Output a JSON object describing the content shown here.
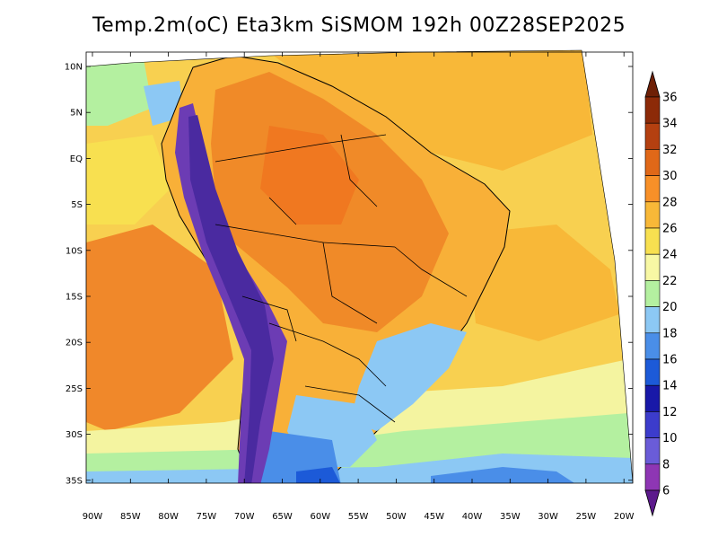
{
  "title": "Temp.2m(oC) Eta3km SiSMOM 192h 00Z28SEP2025",
  "lat_labels": [
    "10N",
    "5N",
    "EQ",
    "5S",
    "10S",
    "15S",
    "20S",
    "25S",
    "30S",
    "35S"
  ],
  "lon_labels": [
    "90W",
    "85W",
    "80W",
    "75W",
    "70W",
    "65W",
    "60W",
    "55W",
    "50W",
    "45W",
    "40W",
    "35W",
    "30W",
    "25W",
    "20W"
  ],
  "colorbar": {
    "labels": [
      "6",
      "8",
      "10",
      "12",
      "14",
      "16",
      "18",
      "20",
      "22",
      "24",
      "26",
      "28",
      "30",
      "32",
      "34",
      "36"
    ],
    "colors": [
      "#5c1a8c",
      "#8e36b4",
      "#6a5cd8",
      "#3c3ccc",
      "#1818a8",
      "#1c5ad8",
      "#4a8ee8",
      "#8cc8f4",
      "#b4f0a0",
      "#f8f8a4",
      "#f8e050",
      "#f8b838",
      "#f89028",
      "#e06818",
      "#b44010",
      "#8c2a08",
      "#6e2006"
    ]
  },
  "map_colors": {
    "ocean_warm": "#f8a838",
    "ocean_mid": "#f8d050",
    "ocean_cool": "#f4f4a0",
    "ocean_cold": "#b4f0a0",
    "land_hot": "#f08a28",
    "land_warm": "#f8b038",
    "andes": "#6c3cb4",
    "south_cold": "#4a8ee8"
  }
}
